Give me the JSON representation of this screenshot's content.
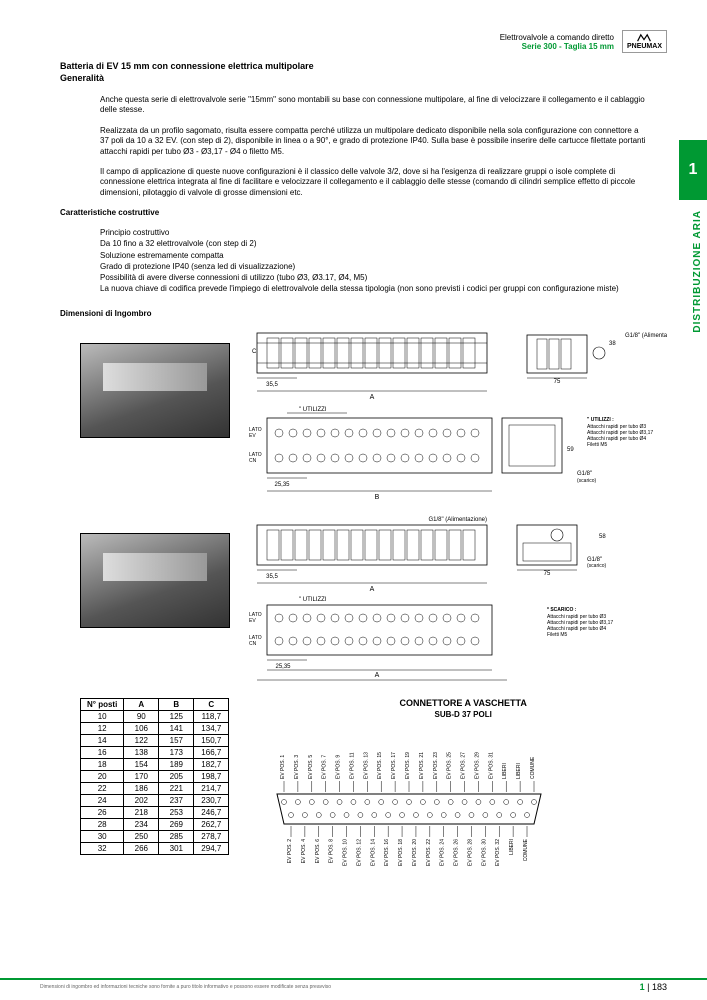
{
  "header": {
    "line1": "Elettrovalvole a comando diretto",
    "line2": "Serie 300 - Taglia 15 mm",
    "logo": "PNEUMAX"
  },
  "title": "Batteria di EV 15 mm con connessione elettrica multipolare",
  "subtitle": "Generalità",
  "intro_p1": "Anche questa serie di elettrovalvole serie \"15mm\" sono montabili su base con connessione multipolare, al fine di velocizzare il collegamento e il cablaggio delle stesse.",
  "intro_p2": "Realizzata da un profilo sagomato, risulta essere compatta perché utilizza un multipolare dedicato disponibile nella sola configurazione con connettore a 37 poli da 10 a 32 EV. (con step di 2), disponibile in linea o a 90°, e grado di protezione IP40. Sulla base è possibile inserire delle cartucce filettate portanti attacchi rapidi per tubo Ø3 - Ø3,17 - Ø4 o filetto M5.",
  "intro_p3": "Il campo di applicazione di queste nuove configurazioni è il classico delle valvole 3/2, dove si ha l'esigenza di realizzare gruppi o isole complete di connessione elettrica integrata al fine di facilitare e velocizzare il collegamento e il cablaggio delle stesse (comando di cilindri semplice effetto di piccole dimensioni, pilotaggio di valvole di grosse dimensioni etc.",
  "char_heading": "Caratteristiche costruttive",
  "bullets": {
    "b1": "Principio costruttivo",
    "b2": "Da 10 fino a 32 elettrovalvole (con step di 2)",
    "b3": "Soluzione estremamente compatta",
    "b4": "Grado di protezione IP40 (senza led di visualizzazione)",
    "b5": "Possibilità di avere diverse connessioni di utilizzo (tubo Ø3, Ø3.17, Ø4, M5)",
    "b6": "La nuova chiave di codifica prevede l'impiego di elettrovalvole della stessa tipologia (non sono previsti i codici per gruppi con configurazione miste)"
  },
  "dim_heading": "Dimensioni di Ingombro",
  "side_label": "DISTRIBUZIONE ARIA",
  "side_number": "1",
  "diagram_labels": {
    "lato_ev": "LATO EV",
    "lato_cn": "LATO CN",
    "utilizzi": "\" UTILIZZI",
    "alim": "G1/8\" (Alimentazione)",
    "scarico": "G1/8\" (scarico)",
    "note1_title": "\" UTILIZZI :",
    "note1_l1": "Attacchi rapidi per tubo Ø3",
    "note1_l2": "Attacchi rapidi per tubo Ø3,17",
    "note1_l3": "Attacchi rapidi per tubo Ø4",
    "note1_l4": "Filetti M5",
    "note2_title": "* SCARICO :",
    "note2_l1": "Attacchi rapidi per tubo Ø3",
    "note2_l2": "Attacchi rapidi per tubo Ø3,17",
    "note2_l3": "Attacchi rapidi per tubo Ø4",
    "note2_l4": "Filetti M5",
    "dim_a": "A",
    "dim_b": "B",
    "dim_c": "C",
    "dim_38": "38",
    "dim_58": "58",
    "dim_59": "59",
    "dim_75": "75",
    "dim_2535": "25,35",
    "dim_355": "35,5"
  },
  "table": {
    "headers": [
      "N° posti",
      "A",
      "B",
      "C"
    ],
    "rows": [
      [
        "10",
        "90",
        "125",
        "118,7"
      ],
      [
        "12",
        "106",
        "141",
        "134,7"
      ],
      [
        "14",
        "122",
        "157",
        "150,7"
      ],
      [
        "16",
        "138",
        "173",
        "166,7"
      ],
      [
        "18",
        "154",
        "189",
        "182,7"
      ],
      [
        "20",
        "170",
        "205",
        "198,7"
      ],
      [
        "22",
        "186",
        "221",
        "214,7"
      ],
      [
        "24",
        "202",
        "237",
        "230,7"
      ],
      [
        "26",
        "218",
        "253",
        "246,7"
      ],
      [
        "28",
        "234",
        "269",
        "262,7"
      ],
      [
        "30",
        "250",
        "285",
        "278,7"
      ],
      [
        "32",
        "266",
        "301",
        "294,7"
      ]
    ]
  },
  "connector": {
    "title": "CONNETTORE A VASCHETTA",
    "subtitle": "SUB-D 37 POLI",
    "top_pins": [
      "EV POS. 1",
      "EV POS. 3",
      "EV POS. 5",
      "EV POS. 7",
      "EV POS. 9",
      "EV POS. 11",
      "EV POS. 13",
      "EV POS. 15",
      "EV POS. 17",
      "EV POS. 19",
      "EV POS. 21",
      "EV POS. 23",
      "EV POS. 25",
      "EV POS. 27",
      "EV POS. 29",
      "EV POS. 31",
      "LIBERI",
      "LIBERI",
      "COMUNE"
    ],
    "bot_pins": [
      "EV POS. 2",
      "EV POS. 4",
      "EV POS. 6",
      "EV POS. 8",
      "EV POS. 10",
      "EV POS. 12",
      "EV POS. 14",
      "EV POS. 16",
      "EV POS. 18",
      "EV POS. 20",
      "EV POS. 22",
      "EV POS. 24",
      "EV POS. 26",
      "EV POS. 28",
      "EV POS. 30",
      "EV POS. 32",
      "LIBERI",
      "COMUNE"
    ]
  },
  "footer": {
    "disclaimer": "Dimensioni di ingombro ed informazioni tecniche sono fornite a puro titolo informativo e possono essere modificate senza preavviso",
    "page_sep": "1",
    "page_num": "183"
  },
  "colors": {
    "brand_green": "#009933"
  }
}
